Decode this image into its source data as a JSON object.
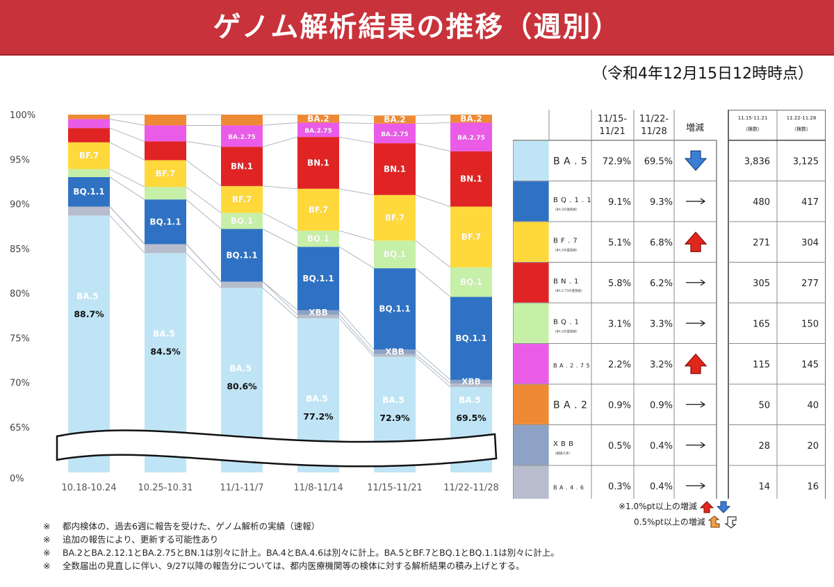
{
  "header": {
    "title": "ゲノム解析結果の推移（週別）",
    "timestamp": "（令和4年12月15日12時時点）"
  },
  "colors": {
    "banner": "#c8333b",
    "BA.5": "#bfe4f5",
    "BQ.1.1": "#2f72c4",
    "BF.7": "#ffd93b",
    "BN.1": "#e02424",
    "BQ.1": "#c6f0a8",
    "BA.2.75": "#ea5ce7",
    "BA.2": "#ef8a34",
    "XBB": "#8da2c4",
    "BA.4.6": "#b7bdcc",
    "up_arrow": "#e3261b",
    "down_arrow": "#3b7fd4"
  },
  "chart_data": {
    "type": "bar",
    "stacked": true,
    "categories": [
      "10.18-10.24",
      "10.25-10.31",
      "11/1-11/7",
      "11/8-11/14",
      "11/15-11/21",
      "11/22-11/28"
    ],
    "y_tick_labels": [
      "100%",
      "95%",
      "90%",
      "85%",
      "80%",
      "75%",
      "70%",
      "65%",
      "0%"
    ],
    "ylim": [
      65,
      100
    ],
    "axis_break": true,
    "series": [
      {
        "name": "BA.5",
        "values": [
          88.7,
          84.5,
          80.6,
          77.2,
          72.9,
          69.5
        ]
      },
      {
        "name": "BA.4.6",
        "values": [
          1.0,
          1.0,
          0.7,
          0.4,
          0.3,
          0.4
        ]
      },
      {
        "name": "XBB",
        "values": [
          0,
          0,
          0,
          0.5,
          0.5,
          0.4
        ]
      },
      {
        "name": "BQ.1.1",
        "values": [
          3.3,
          5.0,
          5.9,
          7.1,
          9.1,
          9.3
        ]
      },
      {
        "name": "BQ.1",
        "values": [
          0.9,
          1.4,
          1.8,
          1.8,
          3.1,
          3.3
        ]
      },
      {
        "name": "BF.7",
        "values": [
          3.0,
          3.0,
          3.0,
          4.7,
          5.1,
          6.8
        ]
      },
      {
        "name": "BN.1",
        "values": [
          1.6,
          2.1,
          4.4,
          5.8,
          5.8,
          6.2
        ]
      },
      {
        "name": "BA.2.75",
        "values": [
          1.0,
          1.8,
          2.4,
          1.6,
          2.2,
          3.2
        ]
      },
      {
        "name": "BA.2",
        "values": [
          0.5,
          1.2,
          1.2,
          0.9,
          0.9,
          0.9
        ]
      }
    ],
    "bar_labels": [
      {
        "bar": 0,
        "series": "BQ.1.1",
        "text": "BQ.1.1"
      },
      {
        "bar": 0,
        "series": "BF.7",
        "text": "BF.7"
      },
      {
        "bar": 1,
        "series": "BQ.1.1",
        "text": "BQ.1.1"
      },
      {
        "bar": 1,
        "series": "BF.7",
        "text": "BF.7"
      },
      {
        "bar": 2,
        "series": "BQ.1.1",
        "text": "BQ.1.1"
      },
      {
        "bar": 2,
        "series": "BQ.1",
        "text": "BQ.1"
      },
      {
        "bar": 2,
        "series": "BF.7",
        "text": "BF.7"
      },
      {
        "bar": 2,
        "series": "BN.1",
        "text": "BN.1"
      },
      {
        "bar": 2,
        "series": "BA.2.75",
        "text": "BA.2.75"
      },
      {
        "bar": 3,
        "series": "XBB",
        "text": "XBB"
      },
      {
        "bar": 3,
        "series": "BQ.1.1",
        "text": "BQ.1.1"
      },
      {
        "bar": 3,
        "series": "BQ.1",
        "text": "BQ.1"
      },
      {
        "bar": 3,
        "series": "BF.7",
        "text": "BF.7"
      },
      {
        "bar": 3,
        "series": "BN.1",
        "text": "BN.1"
      },
      {
        "bar": 3,
        "series": "BA.2.75",
        "text": "BA.2.75"
      },
      {
        "bar": 3,
        "series": "BA.2",
        "text": "BA.2"
      },
      {
        "bar": 4,
        "series": "XBB",
        "text": "XBB"
      },
      {
        "bar": 4,
        "series": "BQ.1.1",
        "text": "BQ.1.1"
      },
      {
        "bar": 4,
        "series": "BQ.1",
        "text": "BQ.1"
      },
      {
        "bar": 4,
        "series": "BF.7",
        "text": "BF.7"
      },
      {
        "bar": 4,
        "series": "BN.1",
        "text": "BN.1"
      },
      {
        "bar": 4,
        "series": "BA.2.75",
        "text": "BA.2.75"
      },
      {
        "bar": 4,
        "series": "BA.2",
        "text": "BA.2"
      },
      {
        "bar": 5,
        "series": "XBB",
        "text": "XBB"
      },
      {
        "bar": 5,
        "series": "BQ.1.1",
        "text": "BQ.1.1"
      },
      {
        "bar": 5,
        "series": "BQ.1",
        "text": "BQ.1"
      },
      {
        "bar": 5,
        "series": "BF.7",
        "text": "BF.7"
      },
      {
        "bar": 5,
        "series": "BN.1",
        "text": "BN.1"
      },
      {
        "bar": 5,
        "series": "BA.2.75",
        "text": "BA.2.75"
      },
      {
        "bar": 5,
        "series": "BA.2",
        "text": "BA.2"
      }
    ],
    "ba5_label": "BA.5",
    "ba5_value_labels": [
      "88.7%",
      "84.5%",
      "80.6%",
      "77.2%",
      "72.9%",
      "69.5%"
    ]
  },
  "table": {
    "headers": {
      "col1": "11/15-\n11/21",
      "col2": "11/22-\n11/28",
      "change": "増減",
      "count1": "11.15-11.21",
      "count1_sub": "（検数）",
      "count2": "11.22-11.28",
      "count2_sub": "（検数）"
    },
    "rows": [
      {
        "name": "BA.5",
        "note": "",
        "pct1": "72.9%",
        "pct2": "69.5%",
        "change": "down-big",
        "count1": "3,836",
        "count2": "3,125"
      },
      {
        "name": "BQ.1.1",
        "note": "（BA.5の亜系統）",
        "pct1": "9.1%",
        "pct2": "9.3%",
        "change": "flat",
        "count1": "480",
        "count2": "417"
      },
      {
        "name": "BF.7",
        "note": "（BA.5の亜系統）",
        "pct1": "5.1%",
        "pct2": "6.8%",
        "change": "up-big",
        "count1": "271",
        "count2": "304"
      },
      {
        "name": "BN.1",
        "note": "（BA.2.75の亜系統）",
        "pct1": "5.8%",
        "pct2": "6.2%",
        "change": "flat",
        "count1": "305",
        "count2": "277"
      },
      {
        "name": "BQ.1",
        "note": "（BA.5の亜系統）",
        "pct1": "3.1%",
        "pct2": "3.3%",
        "change": "flat",
        "count1": "165",
        "count2": "150"
      },
      {
        "name": "BA.2.75",
        "note": "",
        "pct1": "2.2%",
        "pct2": "3.2%",
        "change": "up-big",
        "count1": "115",
        "count2": "145"
      },
      {
        "name": "BA.2",
        "note": "",
        "pct1": "0.9%",
        "pct2": "0.9%",
        "change": "flat",
        "count1": "50",
        "count2": "40"
      },
      {
        "name": "XBB",
        "note": "（組換え体）",
        "pct1": "0.5%",
        "pct2": "0.4%",
        "change": "flat",
        "count1": "28",
        "count2": "20"
      },
      {
        "name": "BA.4.6",
        "note": "",
        "pct1": "0.3%",
        "pct2": "0.4%",
        "change": "flat",
        "count1": "14",
        "count2": "16"
      }
    ],
    "legend_big": "※1.0%pt以上の増減",
    "legend_small": "0.5%pt以上の増減"
  },
  "notes": [
    {
      "mark": "※",
      "text": "都内検体の、過去6週に報告を受けた、ゲノム解析の実績（速報）"
    },
    {
      "mark": "※",
      "text": "追加の報告により、更新する可能性あり"
    },
    {
      "mark": "※",
      "text": "BA.2とBA.2.12.1とBA.2.75とBN.1は別々に計上。BA.4とBA.4.6は別々に計上。BA.5とBF.7とBQ.1とBQ.1.1は別々に計上。"
    },
    {
      "mark": "※",
      "text": "全数届出の見直しに伴い、9/27以降の報告分については、都内医療機関等の検体に対する解析結果の積み上げとする。"
    }
  ]
}
